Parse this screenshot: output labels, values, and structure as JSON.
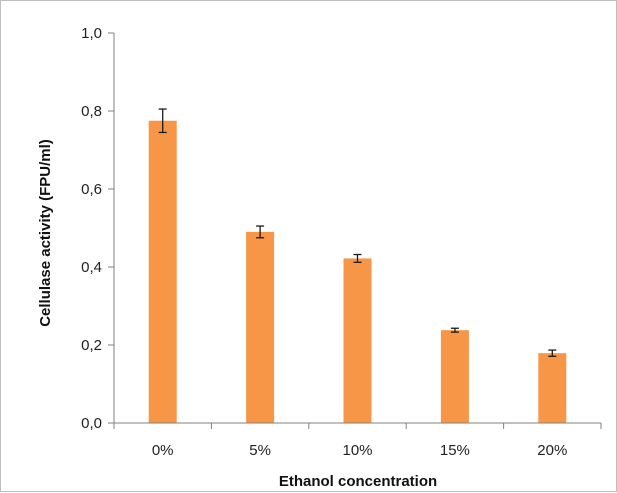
{
  "chart_data": {
    "type": "bar",
    "title": "",
    "xlabel": "Ethanol concentration",
    "ylabel": "Cellulase activity (FPU/ml)",
    "categories": [
      "0%",
      "5%",
      "10%",
      "15%",
      "20%"
    ],
    "values": [
      0.775,
      0.49,
      0.422,
      0.238,
      0.179
    ],
    "errors": [
      0.03,
      0.015,
      0.01,
      0.005,
      0.008
    ],
    "ylim": [
      0,
      1.0
    ],
    "yticks": [
      0.0,
      0.2,
      0.4,
      0.6,
      0.8,
      1.0
    ],
    "ytick_labels": [
      "0,0",
      "0,2",
      "0,4",
      "0,6",
      "0,8",
      "1,0"
    ],
    "grid": false,
    "legend": "none",
    "bar_color": "#f79646",
    "error_bar_color": "#1a1a1a",
    "axis_color": "#808080"
  }
}
